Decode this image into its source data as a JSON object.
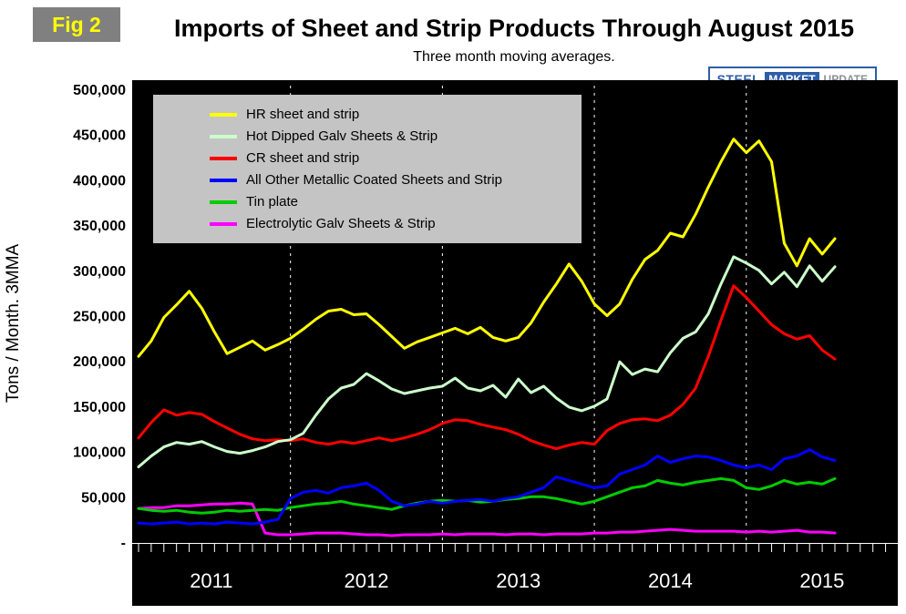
{
  "figure_label": "Fig 2",
  "logo": {
    "steel": "STEEL",
    "market": "MARKET",
    "update": "UPDATE"
  },
  "chart_data": {
    "type": "line",
    "title": "Imports of Sheet and Strip Products Through August 2015",
    "subtitle": "Three month moving averages.",
    "ylabel": "Tons / Month. 3MMA",
    "unit": "tons per month, 3-month moving average",
    "ylim": [
      0,
      500000
    ],
    "y_tick_step": 50000,
    "y_tick_labels_top_to_bottom": [
      "500,000",
      "450,000",
      "400,000",
      "350,000",
      "300,000",
      "250,000",
      "200,000",
      "150,000",
      "100,000",
      "50,000",
      "-"
    ],
    "x_year_labels": [
      "2011",
      "2012",
      "2013",
      "2014",
      "2015"
    ],
    "x_start": "2011-01",
    "x_end": "2015-08",
    "frequency": "monthly",
    "grid": "vertical dashed white lines at each January",
    "legend_position": "top-left inside plot",
    "plot_background": "#000000",
    "series": [
      {
        "name": "HR sheet and strip",
        "color": "#FFFF00",
        "values": [
          205000,
          222000,
          248000,
          262000,
          277000,
          258000,
          232000,
          208000,
          215000,
          222000,
          212000,
          218000,
          225000,
          235000,
          246000,
          255000,
          257000,
          251000,
          252000,
          240000,
          227000,
          214000,
          221000,
          226000,
          231000,
          236000,
          230000,
          237000,
          226000,
          222000,
          226000,
          242000,
          265000,
          285000,
          307000,
          288000,
          263000,
          250000,
          263000,
          290000,
          312000,
          322000,
          341000,
          337000,
          362000,
          392000,
          420000,
          445000,
          430000,
          443000,
          420000,
          330000,
          305000,
          335000,
          318000,
          335000
        ]
      },
      {
        "name": "Hot Dipped Galv Sheets & Strip",
        "color": "#CCFFCC",
        "values": [
          83000,
          95000,
          105000,
          110000,
          108000,
          111000,
          105000,
          100000,
          98000,
          101000,
          105000,
          111000,
          113000,
          120000,
          140000,
          158000,
          170000,
          174000,
          186000,
          178000,
          169000,
          164000,
          167000,
          170000,
          172000,
          181000,
          170000,
          167000,
          173000,
          160000,
          180000,
          165000,
          172000,
          159000,
          149000,
          145000,
          150000,
          158000,
          199000,
          185000,
          191000,
          188000,
          209000,
          225000,
          232000,
          252000,
          285000,
          315000,
          308000,
          300000,
          285000,
          298000,
          282000,
          305000,
          288000,
          304000
        ]
      },
      {
        "name": "CR sheet and strip",
        "color": "#FF0000",
        "values": [
          115000,
          132000,
          146000,
          140000,
          143000,
          141000,
          133000,
          126000,
          119000,
          114000,
          112000,
          113000,
          112000,
          114000,
          110000,
          108000,
          111000,
          109000,
          112000,
          115000,
          112000,
          115000,
          119000,
          124000,
          131000,
          135000,
          134000,
          130000,
          127000,
          124000,
          119000,
          112000,
          107000,
          103000,
          107000,
          110000,
          108000,
          123000,
          131000,
          135000,
          136000,
          134000,
          140000,
          152000,
          170000,
          205000,
          245000,
          283000,
          270000,
          255000,
          240000,
          230000,
          224000,
          228000,
          212000,
          202000
        ]
      },
      {
        "name": "All Other Metallic Coated Sheets and Strip",
        "color": "#0000FF",
        "values": [
          21000,
          20000,
          21000,
          22000,
          20000,
          21000,
          20000,
          22000,
          21000,
          20000,
          22000,
          25000,
          48000,
          55000,
          57000,
          54000,
          60000,
          62000,
          65000,
          57000,
          45000,
          40000,
          42000,
          45000,
          43000,
          45000,
          46000,
          47000,
          45000,
          48000,
          50000,
          55000,
          60000,
          72000,
          68000,
          64000,
          60000,
          62000,
          75000,
          80000,
          85000,
          95000,
          88000,
          92000,
          95000,
          94000,
          90000,
          85000,
          82000,
          85000,
          80000,
          92000,
          95000,
          102000,
          94000,
          90000
        ]
      },
      {
        "name": "Tin plate",
        "color": "#00CC00",
        "values": [
          37000,
          35000,
          34000,
          35000,
          33000,
          32000,
          33000,
          35000,
          34000,
          35000,
          36000,
          35000,
          38000,
          40000,
          42000,
          43000,
          45000,
          42000,
          40000,
          38000,
          36000,
          40000,
          43000,
          45000,
          46000,
          45000,
          46000,
          44000,
          45000,
          47000,
          48000,
          50000,
          50000,
          48000,
          45000,
          42000,
          45000,
          50000,
          55000,
          60000,
          62000,
          68000,
          65000,
          63000,
          66000,
          68000,
          70000,
          68000,
          60000,
          58000,
          62000,
          68000,
          64000,
          66000,
          64000,
          70000
        ]
      },
      {
        "name": "Electrolytic Galv Sheets & Strip",
        "color": "#FF00FF",
        "values": [
          37000,
          38000,
          38000,
          40000,
          40000,
          41000,
          42000,
          42000,
          43000,
          42000,
          10000,
          8000,
          8000,
          9000,
          10000,
          10000,
          10000,
          9000,
          8000,
          8000,
          7000,
          8000,
          8000,
          8000,
          9000,
          8000,
          9000,
          9000,
          9000,
          8000,
          9000,
          9000,
          8000,
          9000,
          9000,
          9000,
          10000,
          10000,
          11000,
          11000,
          12000,
          13000,
          14000,
          13000,
          12000,
          12000,
          12000,
          12000,
          11000,
          12000,
          11000,
          12000,
          13000,
          11000,
          11000,
          10000
        ]
      }
    ]
  }
}
